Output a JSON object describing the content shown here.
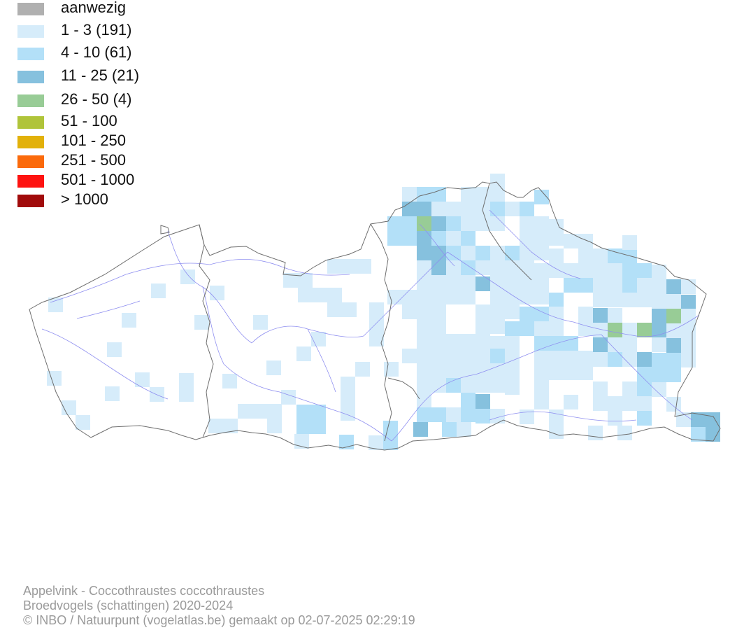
{
  "legend": [
    {
      "label": "aanwezig",
      "color": "#b0b0b0"
    },
    {
      "label": "1 - 3 (191)",
      "color": "#d6ecfa"
    },
    {
      "label": "4 - 10 (61)",
      "color": "#b3e0f8"
    },
    {
      "label": "11 - 25 (21)",
      "color": "#86c1de"
    },
    {
      "label": "26 - 50 (4)",
      "color": "#98cc96"
    },
    {
      "label": "51 - 100",
      "color": "#b0c43a"
    },
    {
      "label": "101 - 250",
      "color": "#e2b10a"
    },
    {
      "label": "251 - 500",
      "color": "#fb6a0b"
    },
    {
      "label": "501 - 1000",
      "color": "#fe1310"
    },
    {
      "label": "> 1000",
      "color": "#a10b0b"
    }
  ],
  "footer": {
    "species": "Appelvink - Coccothraustes coccothraustes",
    "dataset": "Broedvogels (schattingen) 2020-2024",
    "credit": "© INBO / Natuurpunt (vogelatlas.be) gemaakt op 02-07-2025 02:29:19"
  },
  "colors": {
    "border": "#6e6e6e",
    "water": "#8f8ff0",
    "footer_text": "#9a9a9a"
  }
}
